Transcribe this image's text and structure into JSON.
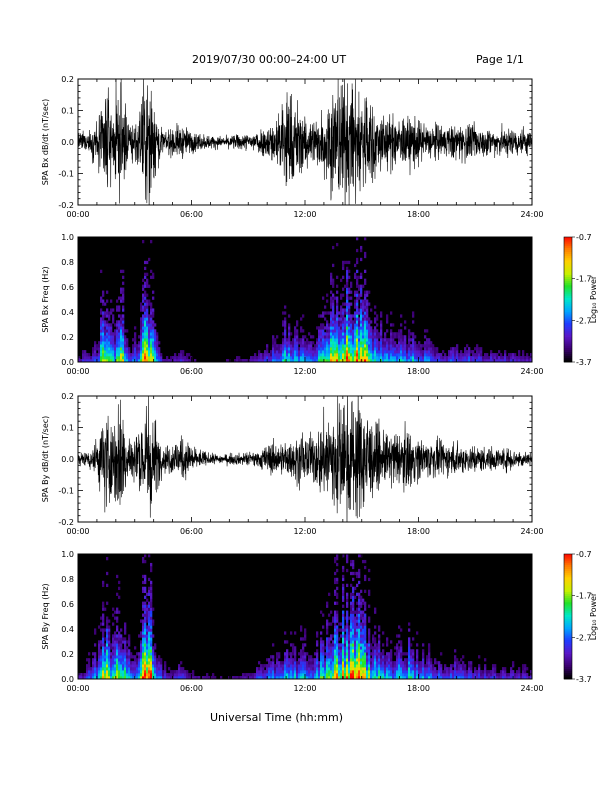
{
  "header": {
    "title": "2019/07/30  00:00–24:00 UT",
    "page": "Page 1/1"
  },
  "xaxis_title": "Universal Time (hh:mm)",
  "colors": {
    "trace": "#000000",
    "background": "#ffffff",
    "spectrogram_background": "#000000",
    "colormap": [
      "#000000",
      "#3b0070",
      "#5a17c8",
      "#1f3cff",
      "#00a6ff",
      "#00e8c8",
      "#22e22a",
      "#c8f000",
      "#ffd000",
      "#ff7a00",
      "#ff0000"
    ]
  },
  "chart_data": [
    {
      "type": "line",
      "ylabel": "SPA Bx dB/dt (nT/sec)",
      "xlim": [
        0,
        24
      ],
      "ylim": [
        -0.2,
        0.2
      ],
      "xticks": [
        "00:00",
        "06:00",
        "12:00",
        "18:00",
        "24:00"
      ],
      "yticks": [
        "0.2",
        "0.1",
        "0.0",
        "-0.1",
        "-0.2"
      ],
      "envelope": {
        "hours": [
          0,
          0.5,
          1,
          1.3,
          1.5,
          1.8,
          2.2,
          2.7,
          3.2,
          3.5,
          3.8,
          4.2,
          4.5,
          5,
          5.5,
          6,
          6.5,
          7,
          7.5,
          8,
          8.5,
          9,
          9.5,
          10,
          10.5,
          11,
          11.5,
          12,
          12.5,
          13,
          13.5,
          14,
          14.5,
          15,
          15.5,
          16,
          16.5,
          17,
          17.5,
          18,
          18.5,
          19,
          19.5,
          20,
          20.5,
          21,
          21.5,
          22,
          22.5,
          23,
          23.5,
          24
        ],
        "amplitude": [
          0.03,
          0.04,
          0.07,
          0.15,
          0.22,
          0.1,
          0.22,
          0.08,
          0.09,
          0.22,
          0.22,
          0.09,
          0.04,
          0.05,
          0.06,
          0.04,
          0.03,
          0.025,
          0.02,
          0.025,
          0.03,
          0.03,
          0.05,
          0.06,
          0.09,
          0.2,
          0.15,
          0.1,
          0.09,
          0.12,
          0.22,
          0.22,
          0.22,
          0.22,
          0.15,
          0.11,
          0.1,
          0.09,
          0.1,
          0.08,
          0.07,
          0.06,
          0.06,
          0.06,
          0.07,
          0.06,
          0.05,
          0.05,
          0.05,
          0.05,
          0.06,
          0.04
        ]
      }
    },
    {
      "type": "heatmap",
      "ylabel": "SPA Bx Freq (Hz)",
      "xlim": [
        0,
        24
      ],
      "ylim": [
        0,
        1.0
      ],
      "xticks": [
        "00:00",
        "06:00",
        "12:00",
        "18:00",
        "24:00"
      ],
      "yticks": [
        "1.0",
        "0.8",
        "0.6",
        "0.4",
        "0.2",
        "0.0"
      ],
      "colorbar": {
        "label": "Log₁₀ Power",
        "min": -3.7,
        "max": -0.7,
        "ticks": [
          "-0.7",
          "-1.7",
          "-2.7",
          "-3.7"
        ]
      },
      "activity": {
        "hours": [
          0,
          0.5,
          1,
          1.3,
          1.5,
          1.8,
          2.2,
          2.7,
          3.2,
          3.5,
          3.8,
          4.2,
          4.5,
          5,
          5.5,
          6,
          6.5,
          7,
          7.5,
          8,
          8.5,
          9,
          9.5,
          10,
          10.5,
          11,
          11.5,
          12,
          12.5,
          13,
          13.5,
          14,
          14.5,
          15,
          15.5,
          16,
          16.5,
          17,
          17.5,
          18,
          18.5,
          19,
          19.5,
          20,
          20.5,
          21,
          21.5,
          22,
          22.5,
          23,
          23.5,
          24
        ],
        "level": [
          0.2,
          0.25,
          0.35,
          0.75,
          0.9,
          0.45,
          0.85,
          0.35,
          0.4,
          0.9,
          0.95,
          0.4,
          0.2,
          0.2,
          0.25,
          0.15,
          0.12,
          0.1,
          0.1,
          0.12,
          0.15,
          0.15,
          0.25,
          0.3,
          0.4,
          0.55,
          0.5,
          0.45,
          0.45,
          0.55,
          0.8,
          0.9,
          0.9,
          0.95,
          0.55,
          0.5,
          0.45,
          0.45,
          0.45,
          0.4,
          0.35,
          0.3,
          0.3,
          0.3,
          0.35,
          0.3,
          0.25,
          0.25,
          0.25,
          0.25,
          0.25,
          0.2
        ]
      }
    },
    {
      "type": "line",
      "ylabel": "SPA By dB/dt (nT/sec)",
      "xlim": [
        0,
        24
      ],
      "ylim": [
        -0.2,
        0.2
      ],
      "xticks": [
        "00:00",
        "06:00",
        "12:00",
        "18:00",
        "24:00"
      ],
      "yticks": [
        "0.2",
        "0.1",
        "0.0",
        "-0.1",
        "-0.2"
      ],
      "envelope": {
        "hours": [
          0,
          0.5,
          1,
          1.3,
          1.5,
          1.8,
          2.2,
          2.7,
          3.2,
          3.5,
          3.8,
          4.2,
          4.5,
          5,
          5.5,
          6,
          6.5,
          7,
          7.5,
          8,
          8.5,
          9,
          9.5,
          10,
          10.5,
          11,
          11.5,
          12,
          12.5,
          13,
          13.5,
          14,
          14.5,
          15,
          15.5,
          16,
          16.5,
          17,
          17.5,
          18,
          18.5,
          19,
          19.5,
          20,
          20.5,
          21,
          21.5,
          22,
          22.5,
          23,
          23.5,
          24
        ],
        "amplitude": [
          0.02,
          0.03,
          0.08,
          0.15,
          0.22,
          0.12,
          0.22,
          0.1,
          0.1,
          0.22,
          0.22,
          0.1,
          0.04,
          0.06,
          0.08,
          0.05,
          0.03,
          0.02,
          0.015,
          0.02,
          0.02,
          0.025,
          0.03,
          0.05,
          0.06,
          0.06,
          0.08,
          0.09,
          0.09,
          0.15,
          0.22,
          0.22,
          0.22,
          0.22,
          0.14,
          0.1,
          0.09,
          0.1,
          0.1,
          0.08,
          0.07,
          0.06,
          0.06,
          0.06,
          0.05,
          0.05,
          0.04,
          0.04,
          0.04,
          0.04,
          0.03,
          0.02
        ]
      }
    },
    {
      "type": "heatmap",
      "ylabel": "SPA By Freq (Hz)",
      "xlim": [
        0,
        24
      ],
      "ylim": [
        0,
        1.0
      ],
      "xticks": [
        "00:00",
        "06:00",
        "12:00",
        "18:00",
        "24:00"
      ],
      "yticks": [
        "1.0",
        "0.8",
        "0.6",
        "0.4",
        "0.2",
        "0.0"
      ],
      "colorbar": {
        "label": "Log₁₀ Power",
        "min": -3.7,
        "max": -0.7,
        "ticks": [
          "-0.7",
          "-1.7",
          "-2.7",
          "-3.7"
        ]
      },
      "activity": {
        "hours": [
          0,
          0.5,
          1,
          1.3,
          1.5,
          1.8,
          2.2,
          2.7,
          3.2,
          3.5,
          3.8,
          4.2,
          4.5,
          5,
          5.5,
          6,
          6.5,
          7,
          7.5,
          8,
          8.5,
          9,
          9.5,
          10,
          10.5,
          11,
          11.5,
          12,
          12.5,
          13,
          13.5,
          14,
          14.5,
          15,
          15.5,
          16,
          16.5,
          17,
          17.5,
          18,
          18.5,
          19,
          19.5,
          20,
          20.5,
          21,
          21.5,
          22,
          22.5,
          23,
          23.5,
          24
        ],
        "level": [
          0.2,
          0.3,
          0.45,
          0.75,
          0.95,
          0.55,
          0.9,
          0.45,
          0.5,
          0.95,
          0.95,
          0.45,
          0.25,
          0.25,
          0.35,
          0.2,
          0.15,
          0.12,
          0.1,
          0.12,
          0.15,
          0.15,
          0.3,
          0.35,
          0.4,
          0.45,
          0.45,
          0.45,
          0.45,
          0.6,
          0.8,
          0.9,
          0.9,
          0.95,
          0.6,
          0.5,
          0.45,
          0.5,
          0.55,
          0.45,
          0.4,
          0.35,
          0.35,
          0.35,
          0.35,
          0.3,
          0.3,
          0.25,
          0.25,
          0.25,
          0.25,
          0.2
        ]
      }
    }
  ]
}
